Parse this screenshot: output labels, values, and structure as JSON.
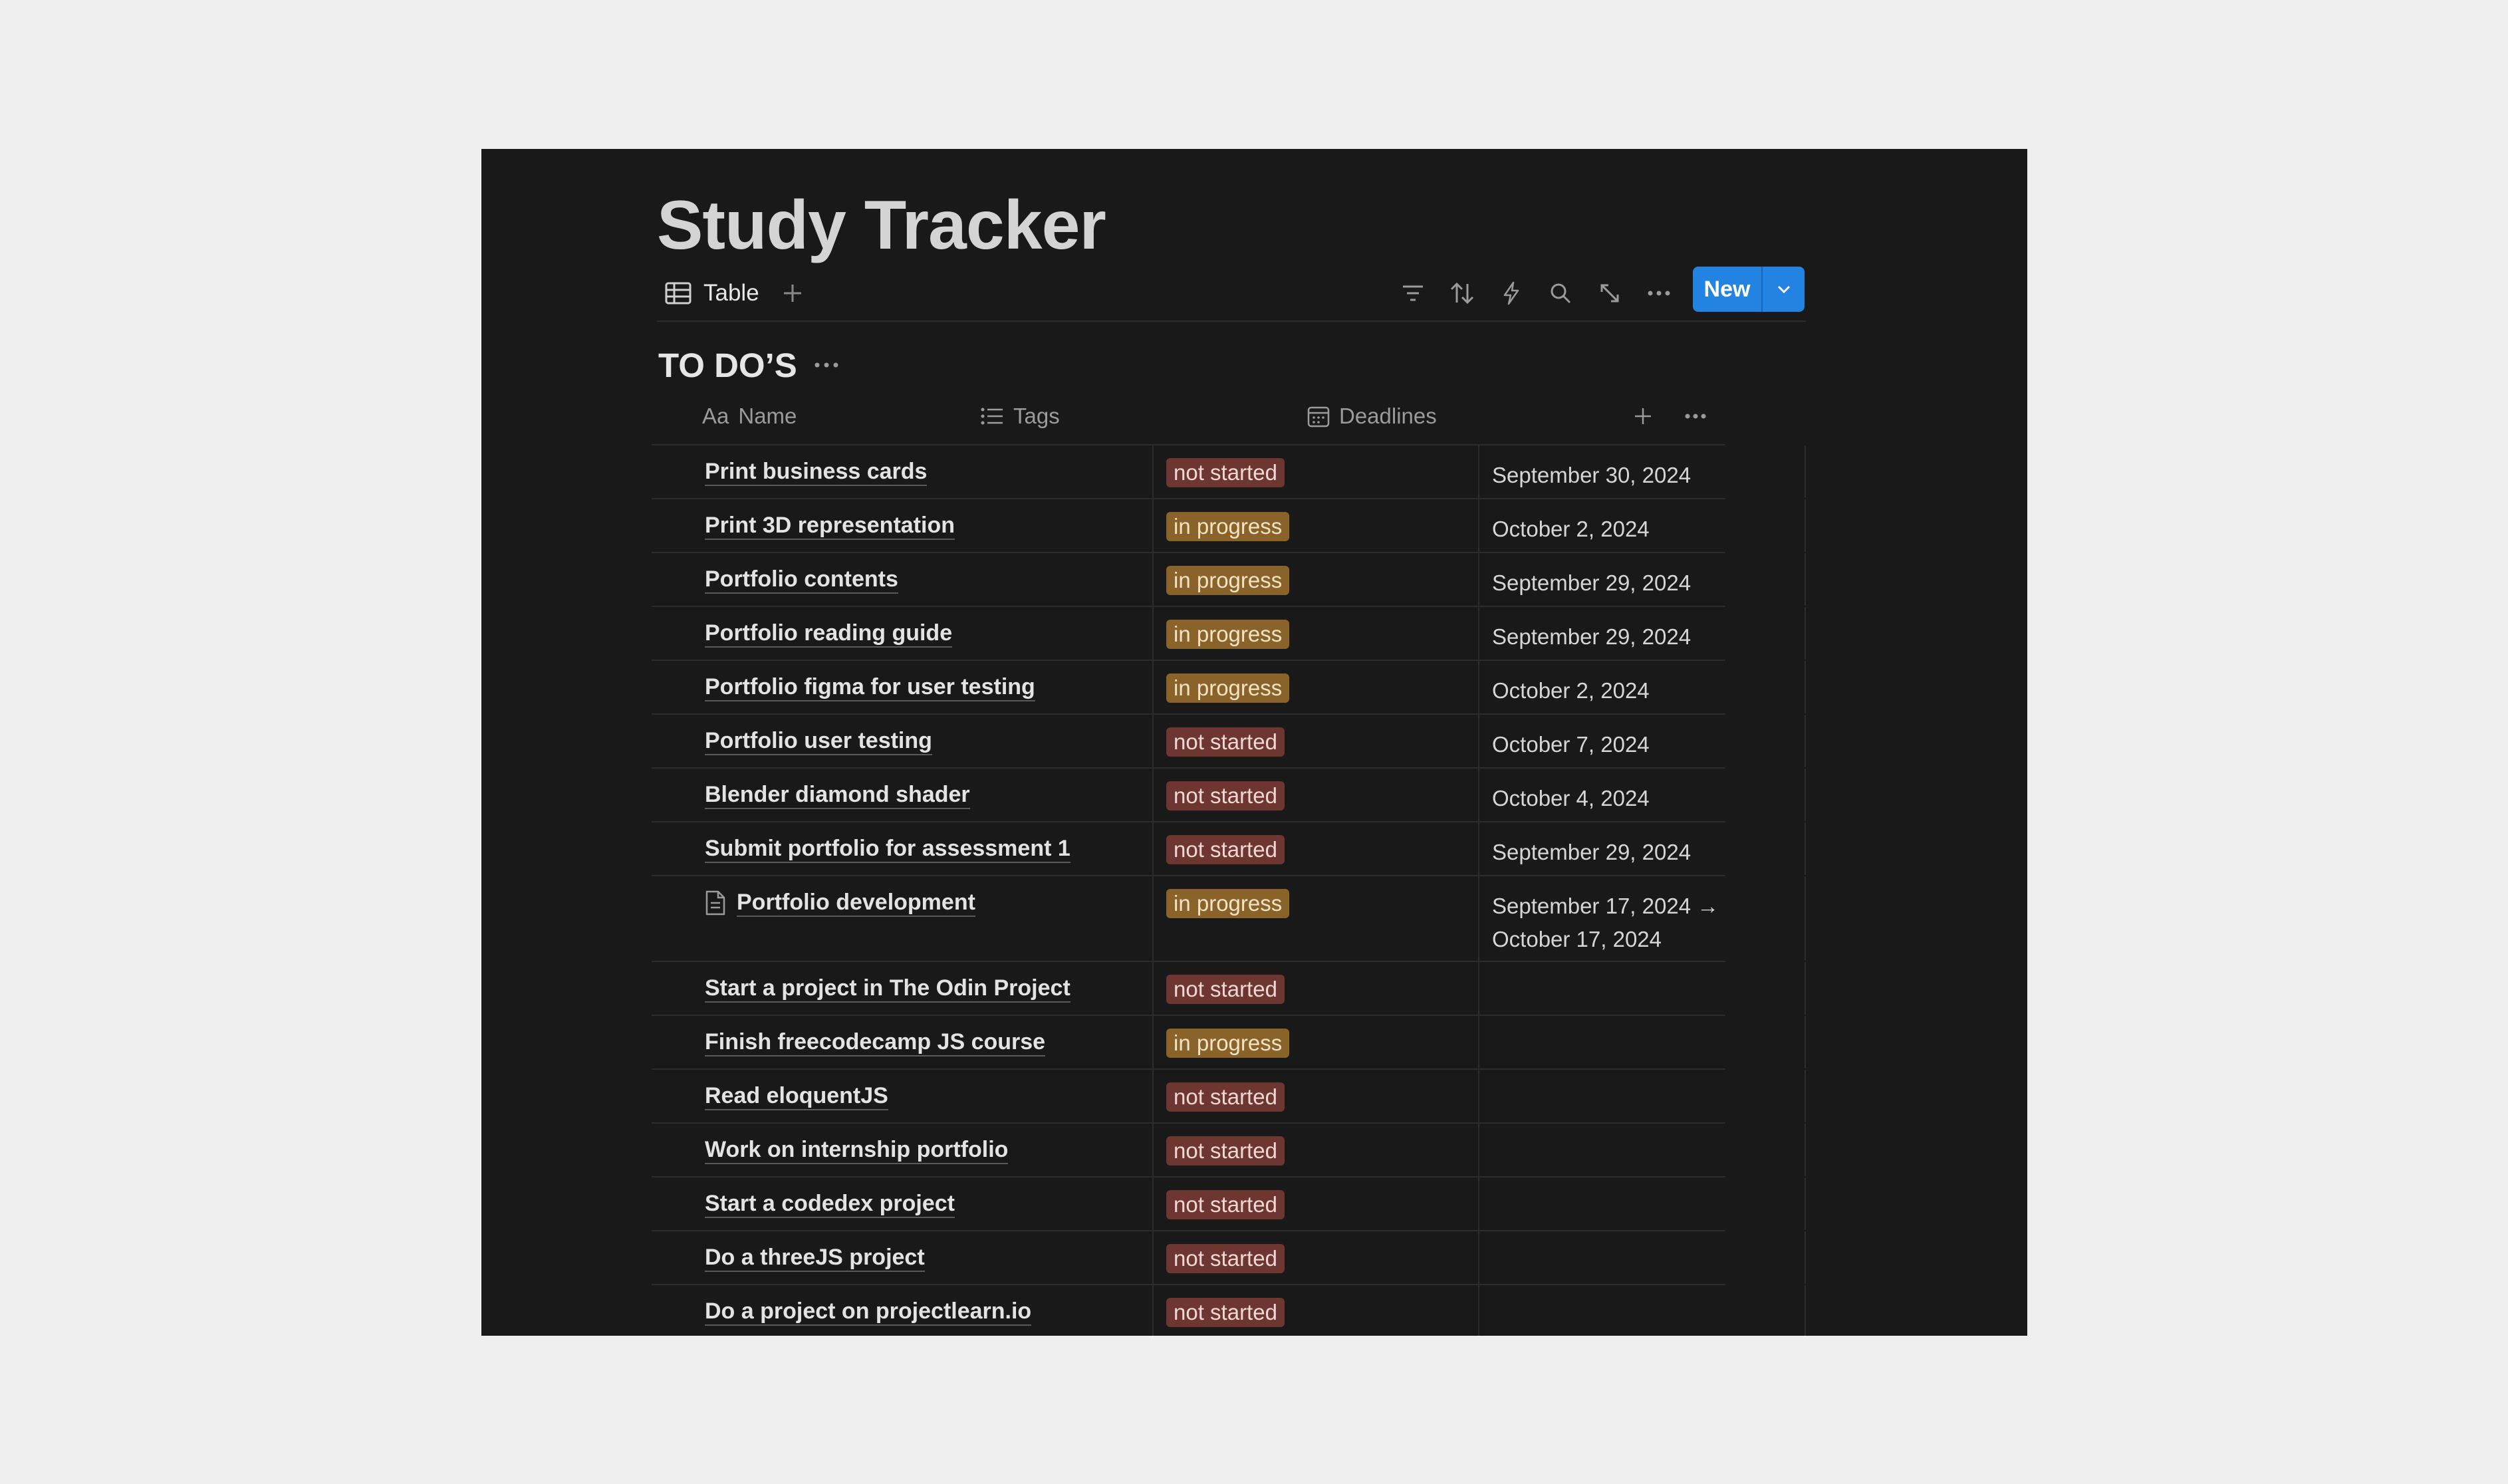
{
  "page": {
    "title": "Study Tracker"
  },
  "views": {
    "tabs": [
      {
        "label": "Table",
        "icon": "table-icon"
      }
    ],
    "add_view_icon": "plus-icon"
  },
  "toolbar": {
    "icons": [
      "filter-icon",
      "sort-icon",
      "automation-icon",
      "search-icon",
      "expand-icon",
      "more-icon"
    ],
    "new_label": "New",
    "new_dropdown_icon": "chevron-down-icon"
  },
  "section": {
    "title": "TO DO’S"
  },
  "columns": {
    "name": {
      "prefix": "Aa",
      "label": "Name"
    },
    "tags": {
      "label": "Tags",
      "icon": "list-icon"
    },
    "deadlines": {
      "label": "Deadlines",
      "icon": "calendar-icon"
    }
  },
  "tag_colors": {
    "not started": {
      "bg": "#6e3630",
      "fg": "#f0d8d4"
    },
    "in progress": {
      "bg": "#89632a",
      "fg": "#f4e3c4"
    }
  },
  "rows": [
    {
      "name": "Print business cards",
      "tag": "not started",
      "deadline": "September 30, 2024"
    },
    {
      "name": "Print 3D representation",
      "tag": "in progress",
      "deadline": "October 2, 2024"
    },
    {
      "name": "Portfolio contents",
      "tag": "in progress",
      "deadline": "September 29, 2024"
    },
    {
      "name": "Portfolio reading guide",
      "tag": "in progress",
      "deadline": "September 29, 2024"
    },
    {
      "name": "Portfolio figma for user testing",
      "tag": "in progress",
      "deadline": "October 2, 2024"
    },
    {
      "name": "Portfolio user testing",
      "tag": "not started",
      "deadline": "October 7, 2024"
    },
    {
      "name": "Blender diamond shader",
      "tag": "not started",
      "deadline": "October 4, 2024"
    },
    {
      "name": "Submit portfolio for assessment 1",
      "tag": "not started",
      "deadline": "September 29, 2024"
    },
    {
      "name": "Portfolio development",
      "tag": "in progress",
      "deadline": "September 17, 2024 → October 17, 2024",
      "icon": "page-icon"
    },
    {
      "name": "Start a project in The Odin Project",
      "tag": "not started",
      "deadline": ""
    },
    {
      "name": "Finish freecodecamp JS course",
      "tag": "in progress",
      "deadline": ""
    },
    {
      "name": "Read eloquentJS",
      "tag": "not started",
      "deadline": ""
    },
    {
      "name": "Work on internship portfolio",
      "tag": "not started",
      "deadline": ""
    },
    {
      "name": "Start a codedex project",
      "tag": "not started",
      "deadline": ""
    },
    {
      "name": "Do a threeJS project",
      "tag": "not started",
      "deadline": ""
    },
    {
      "name": "Do a project on projectlearn.io",
      "tag": "not started",
      "deadline": ""
    }
  ]
}
